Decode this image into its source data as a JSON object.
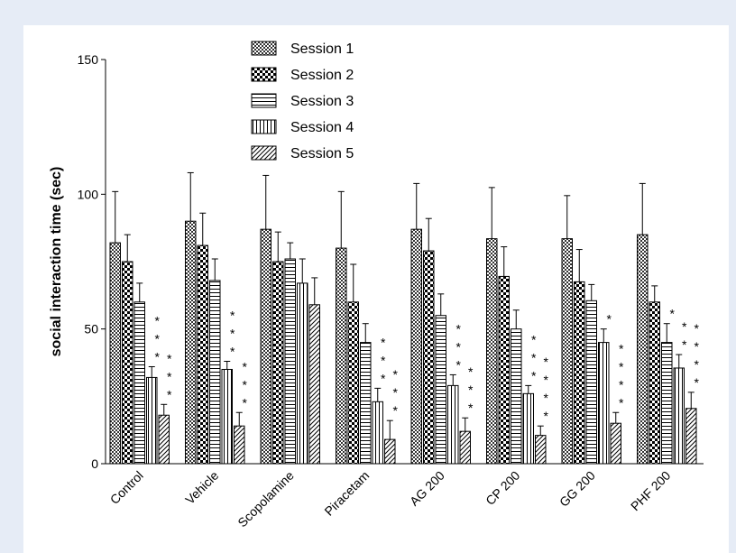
{
  "chart_data": {
    "type": "bar",
    "title": "",
    "xlabel": "",
    "ylabel": "social interaction time (sec)",
    "ylim": [
      0,
      150
    ],
    "yticks": [
      0,
      50,
      100,
      150
    ],
    "legend_position": "top-center",
    "categories": [
      "Control",
      "Vehicle",
      "Scopolamine",
      "Piracetam",
      "AG 200",
      "CP 200",
      "GG 200",
      "PHF 200"
    ],
    "series": [
      {
        "name": "Session 1",
        "pattern": "checker-fine",
        "values": [
          82,
          90,
          87,
          80,
          87,
          83.5,
          83.5,
          85
        ],
        "errors": [
          19,
          18,
          20,
          21,
          17,
          19,
          16,
          19
        ]
      },
      {
        "name": "Session 2",
        "pattern": "checker-bold",
        "values": [
          75,
          81,
          75,
          60,
          79,
          69.5,
          67.5,
          60
        ],
        "errors": [
          10,
          12,
          11,
          14,
          12,
          11,
          12,
          6
        ]
      },
      {
        "name": "Session 3",
        "pattern": "horizontal",
        "values": [
          60,
          68,
          76,
          45,
          55,
          50,
          60.5,
          45
        ],
        "errors": [
          7,
          8,
          6,
          7,
          8,
          7,
          6,
          7
        ]
      },
      {
        "name": "Session 4",
        "pattern": "vertical",
        "values": [
          32,
          35,
          67,
          23,
          29,
          26,
          45,
          35.5
        ],
        "errors": [
          4,
          3,
          9,
          5,
          4,
          3,
          5,
          5
        ]
      },
      {
        "name": "Session 5",
        "pattern": "diagonal",
        "values": [
          18,
          14,
          59,
          9,
          12,
          10.5,
          15,
          20.5
        ],
        "errors": [
          4,
          5,
          10,
          7,
          5,
          3.5,
          4,
          6
        ]
      }
    ],
    "significance": [
      {
        "category": "Control",
        "series": "Session 4",
        "marks": "***"
      },
      {
        "category": "Control",
        "series": "Session 5",
        "marks": "***"
      },
      {
        "category": "Vehicle",
        "series": "Session 4",
        "marks": "***"
      },
      {
        "category": "Vehicle",
        "series": "Session 5",
        "marks": "***"
      },
      {
        "category": "Piracetam",
        "series": "Session 4",
        "marks": "***"
      },
      {
        "category": "Piracetam",
        "series": "Session 5",
        "marks": "***"
      },
      {
        "category": "AG 200",
        "series": "Session 4",
        "marks": "***"
      },
      {
        "category": "AG 200",
        "series": "Session 5",
        "marks": "***"
      },
      {
        "category": "CP 200",
        "series": "Session 4",
        "marks": "***"
      },
      {
        "category": "CP 200",
        "series": "Session 5",
        "marks": "****"
      },
      {
        "category": "GG 200",
        "series": "Session 4",
        "marks": "*"
      },
      {
        "category": "GG 200",
        "series": "Session 5",
        "marks": "****"
      },
      {
        "category": "PHF 200",
        "series": "Session 3",
        "marks": "*"
      },
      {
        "category": "PHF 200",
        "series": "Session 4",
        "marks": "**"
      },
      {
        "category": "PHF 200",
        "series": "Session 5",
        "marks": "****"
      }
    ]
  }
}
